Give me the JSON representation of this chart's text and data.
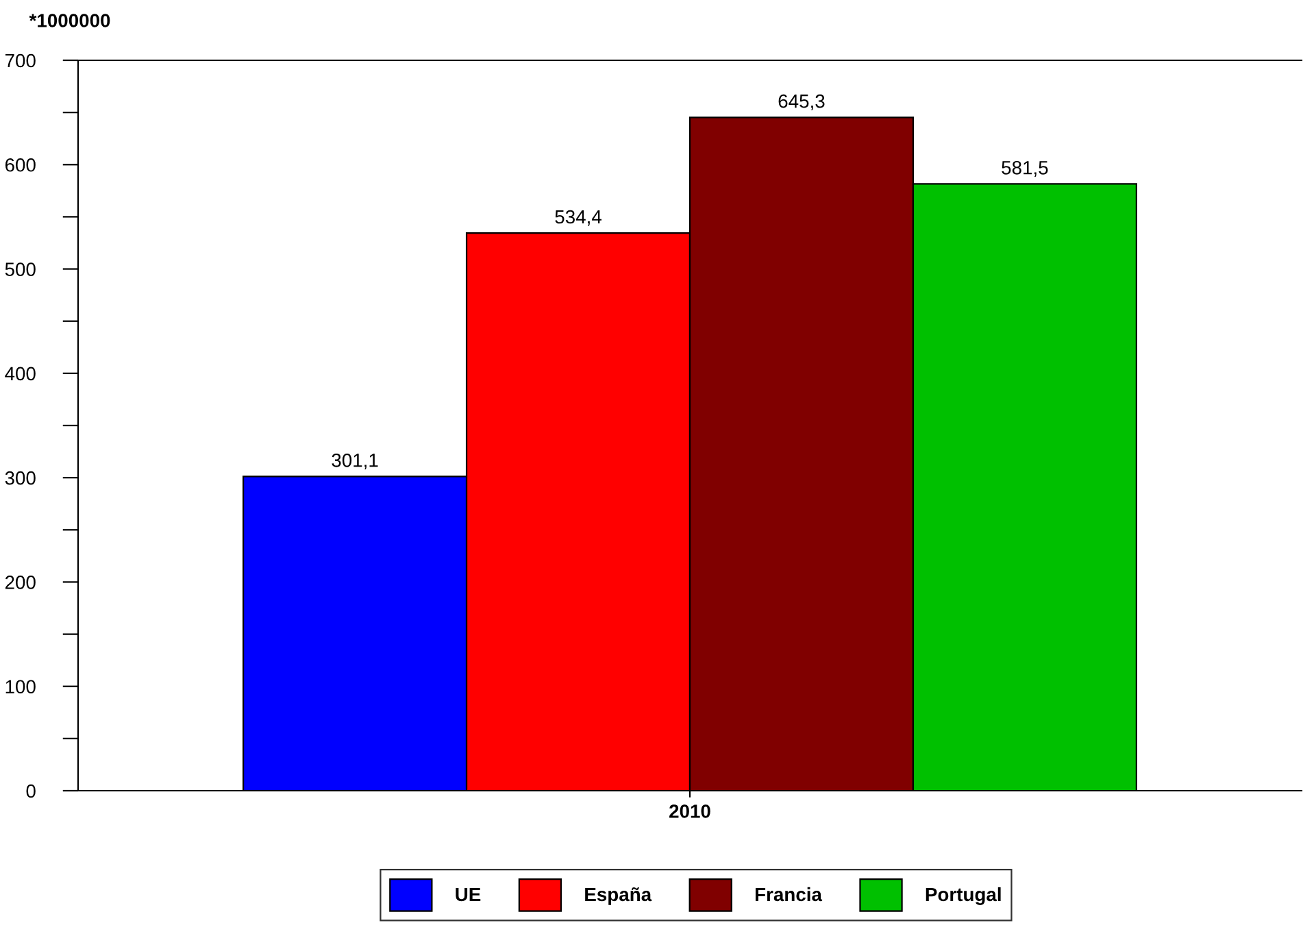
{
  "chart_data": {
    "type": "bar",
    "ylabel": "*1000000",
    "categories": [
      "2010"
    ],
    "series": [
      {
        "name": "UE",
        "color": "#0000ff",
        "values": [
          301.1
        ],
        "value_labels": [
          "301,1"
        ]
      },
      {
        "name": "España",
        "color": "#ff0000",
        "values": [
          534.4
        ],
        "value_labels": [
          "534,4"
        ]
      },
      {
        "name": "Francia",
        "color": "#800000",
        "values": [
          645.3
        ],
        "value_labels": [
          "645,3"
        ]
      },
      {
        "name": "Portugal",
        "color": "#00c000",
        "values": [
          581.5
        ],
        "value_labels": [
          "581,5"
        ]
      }
    ],
    "ylim": [
      0,
      700
    ],
    "yticks": [
      0,
      {
        "value": 50,
        "label": null
      },
      100,
      {
        "value": 150,
        "label": null
      },
      200,
      {
        "value": 250,
        "label": null
      },
      300,
      {
        "value": 350,
        "label": null
      },
      400,
      {
        "value": 450,
        "label": null
      },
      500,
      {
        "value": 550,
        "label": null
      },
      600,
      {
        "value": 650,
        "label": null
      },
      700
    ],
    "grid": false,
    "legend": "bottom"
  }
}
